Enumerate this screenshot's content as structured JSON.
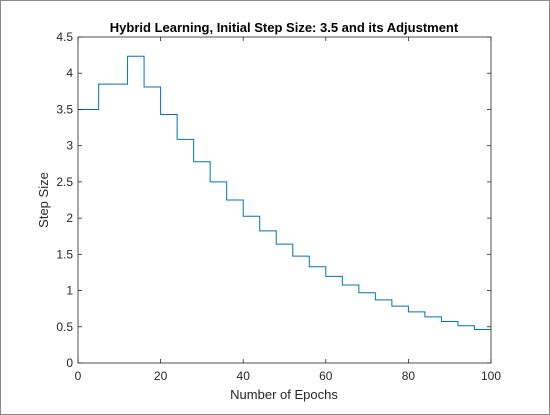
{
  "chart_data": {
    "type": "line",
    "title": "Hybrid Learning, Initial Step Size: 3.5 and its Adjustment",
    "xlabel": "Number of Epochs",
    "ylabel": "Step Size",
    "xlim": [
      0,
      100
    ],
    "ylim": [
      0,
      4.5
    ],
    "xticks": [
      0,
      20,
      40,
      60,
      80,
      100
    ],
    "xtick_labels": [
      "0",
      "20",
      "40",
      "60",
      "80",
      "100"
    ],
    "yticks": [
      0,
      0.5,
      1,
      1.5,
      2,
      2.5,
      3,
      3.5,
      4,
      4.5
    ],
    "ytick_labels": [
      "0",
      "0.5",
      "1",
      "1.5",
      "2",
      "2.5",
      "3",
      "3.5",
      "4",
      "4.5"
    ],
    "grid": false,
    "line_style": "step",
    "series": [
      {
        "color": "#0072bd",
        "x": [
          0,
          5,
          9,
          12,
          16,
          20,
          24,
          28,
          32,
          36,
          40,
          44,
          48,
          52,
          56,
          60,
          64,
          68,
          72,
          76,
          80,
          84,
          88,
          92,
          96,
          100
        ],
        "y": [
          3.5,
          3.85,
          3.85,
          4.235,
          3.81,
          3.43,
          3.087,
          2.778,
          2.5,
          2.25,
          2.025,
          1.823,
          1.641,
          1.476,
          1.329,
          1.196,
          1.076,
          0.969,
          0.872,
          0.785,
          0.706,
          0.636,
          0.572,
          0.515,
          0.463,
          0.463
        ]
      }
    ]
  }
}
